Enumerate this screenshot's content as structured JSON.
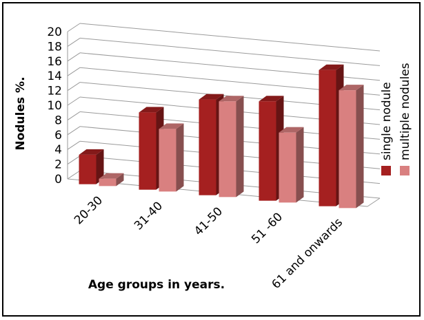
{
  "chart_data": {
    "type": "bar",
    "categories": [
      "20-30",
      "31-40",
      "41-50",
      "51 -60",
      "61 and onwards"
    ],
    "series": [
      {
        "name": "single nodule",
        "values": [
          4,
          10.5,
          13,
          13.5,
          18.5
        ],
        "color": "#A52020"
      },
      {
        "name": "multiple nodules",
        "values": [
          1,
          8.5,
          13,
          9.5,
          16
        ],
        "color": "#D98080"
      }
    ],
    "xlabel": "Age groups in years.",
    "ylabel": "Nodules %.",
    "ylim": [
      0,
      20
    ],
    "yticks": [
      0,
      2,
      4,
      6,
      8,
      10,
      12,
      14,
      16,
      18,
      20
    ],
    "grid": true,
    "legend_position": "right (rotated)",
    "style": "3d clustered column"
  }
}
